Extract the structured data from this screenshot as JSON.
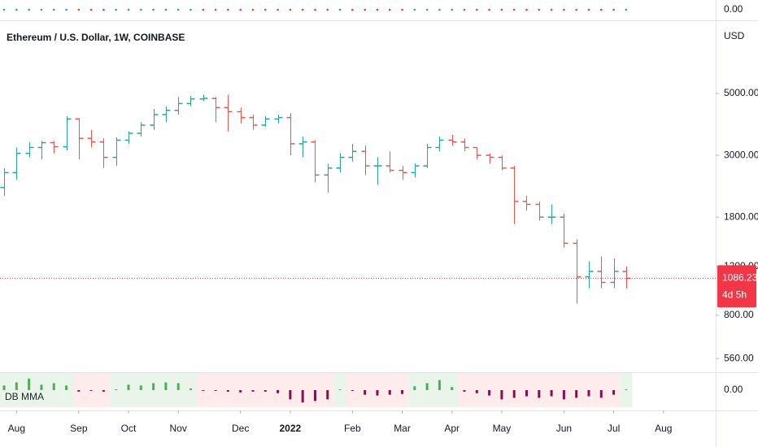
{
  "chart_data": [
    {
      "type": "ohlc",
      "title": "Ethereum / U.S. Dollar, 1W, COINBASE",
      "unit": "USD",
      "log_scale": true,
      "up_color": "#26a69a",
      "down_color": "#ef5350",
      "last_price_line": true,
      "countdown": "4d 5h",
      "open": [
        2300,
        2600,
        3050,
        3200,
        3330,
        3220,
        4050,
        3450,
        3350,
        2950,
        3400,
        3600,
        3850,
        4200,
        4350,
        4600,
        4780,
        4800,
        4450,
        4300,
        4100,
        3850,
        4050,
        4100,
        3300,
        3350,
        2550,
        2700,
        2950,
        3100,
        2750,
        2750,
        2650,
        2600,
        2750,
        3200,
        3400,
        3350,
        3200,
        3000,
        2950,
        2700,
        2050,
        2000,
        1800,
        1800,
        1450,
        1100,
        1150,
        1050,
        1150
      ],
      "high": [
        2700,
        3200,
        3350,
        3380,
        3380,
        4150,
        4080,
        3700,
        3450,
        3480,
        3650,
        3950,
        4400,
        4500,
        4850,
        4900,
        4950,
        4850,
        4950,
        4450,
        4200,
        4150,
        4200,
        4250,
        3500,
        3400,
        2800,
        3050,
        3300,
        3250,
        2950,
        3100,
        2750,
        2800,
        3300,
        3500,
        3550,
        3450,
        3200,
        3050,
        3000,
        2750,
        2150,
        2050,
        2000,
        1850,
        1500,
        1250,
        1300,
        1280,
        1200
      ],
      "low": [
        2150,
        2450,
        2950,
        2900,
        3050,
        3120,
        2900,
        3200,
        2700,
        2750,
        3300,
        3500,
        3700,
        3950,
        4200,
        4500,
        4700,
        3950,
        3650,
        3900,
        3700,
        3800,
        3900,
        3000,
        2950,
        2400,
        2200,
        2600,
        2850,
        2550,
        2350,
        2600,
        2450,
        2500,
        2700,
        3100,
        3250,
        3100,
        2900,
        2800,
        2650,
        1700,
        1900,
        1750,
        1700,
        1400,
        880,
        1000,
        1000,
        1000,
        1000
      ],
      "close": [
        2600,
        3050,
        3200,
        3330,
        3220,
        4050,
        3450,
        3350,
        2950,
        3400,
        3600,
        3850,
        4200,
        4350,
        4600,
        4780,
        4800,
        4450,
        4300,
        4100,
        3850,
        4050,
        4100,
        3300,
        3350,
        2550,
        2700,
        2950,
        3100,
        2750,
        2750,
        2650,
        2600,
        2750,
        3200,
        3400,
        3350,
        3200,
        3000,
        2950,
        2700,
        2050,
        2000,
        1800,
        1800,
        1450,
        1100,
        1150,
        1050,
        1150,
        1086.23
      ],
      "ylim": [
        500,
        9150
      ],
      "yticks": [
        {
          "value": 560,
          "label": "560.00"
        },
        {
          "value": 800,
          "label": "800.00"
        },
        {
          "value": 1200,
          "label": "1200.00"
        },
        {
          "value": 1800,
          "label": "1800.00"
        },
        {
          "value": 3000,
          "label": "3000.00"
        },
        {
          "value": 5000,
          "label": "5000.00"
        }
      ],
      "xlim": [
        -0.33,
        57.2
      ],
      "xticks": [
        {
          "value": 1,
          "label": "Aug"
        },
        {
          "value": 6,
          "label": "Sep"
        },
        {
          "value": 10,
          "label": "Oct"
        },
        {
          "value": 14,
          "label": "Nov"
        },
        {
          "value": 19,
          "label": "Dec"
        },
        {
          "value": 23,
          "label": "2022"
        },
        {
          "value": 28,
          "label": "Feb"
        },
        {
          "value": 32,
          "label": "Mar"
        },
        {
          "value": 36,
          "label": "Apr"
        },
        {
          "value": 40,
          "label": "May"
        },
        {
          "value": 45,
          "label": "Jun"
        },
        {
          "value": 49,
          "label": "Jul"
        },
        {
          "value": 53,
          "label": "Aug"
        }
      ]
    },
    {
      "type": "histogram",
      "name": "DB MMA",
      "up_color": "#4caf50",
      "down_color": "#880e4f",
      "values": [
        0.3,
        0.5,
        0.75,
        0.35,
        0.45,
        0.3,
        -0.1,
        -0.05,
        -0.1,
        0.05,
        0.35,
        0.3,
        0.45,
        0.5,
        0.45,
        0.1,
        -0.05,
        -0.05,
        -0.1,
        -0.15,
        -0.1,
        -0.1,
        -0.2,
        -0.6,
        -0.8,
        -0.7,
        -0.6,
        0.05,
        -0.05,
        -0.3,
        -0.35,
        -0.3,
        -0.25,
        0.25,
        0.45,
        0.65,
        0.2,
        -0.1,
        -0.2,
        -0.35,
        -0.6,
        -0.5,
        -0.4,
        -0.5,
        -0.4,
        -0.6,
        -0.5,
        -0.4,
        -0.5,
        -0.3,
        0.05
      ],
      "ylim": [
        -1,
        1
      ],
      "yticks": [
        {
          "value": 0,
          "label": "0.00"
        }
      ]
    },
    {
      "type": "dots",
      "up_color": "#26a69a",
      "down_color": "#f23645",
      "ylim": [
        -1,
        1
      ],
      "yticks": [
        {
          "value": 0,
          "label": "0.00"
        }
      ]
    }
  ]
}
